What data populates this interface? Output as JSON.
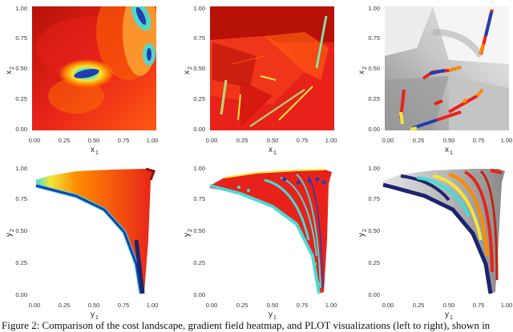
{
  "figure": {
    "caption": "Figure 2: Comparison of the cost landscape, gradient field heatmap, and PLOT visualizations (left to right), shown in",
    "top_row": {
      "xlabel": "x",
      "xlabel_sub": "1",
      "ylabel": "x",
      "ylabel_sub": "2",
      "xticks": [
        "0.00",
        "0.25",
        "0.50",
        "0.75",
        "1.00"
      ],
      "yticks": [
        "0.00",
        "0.25",
        "0.50",
        "0.75",
        "1.00"
      ],
      "panels": [
        "cost-landscape",
        "gradient-field-heatmap",
        "plot-visualization"
      ]
    },
    "bottom_row": {
      "xlabel": "y",
      "xlabel_sub": "1",
      "ylabel": "y",
      "ylabel_sub": "2",
      "xticks": [
        "0.00",
        "0.25",
        "0.50",
        "0.75",
        "1.00"
      ],
      "yticks": [
        "0.00",
        "0.25",
        "0.50",
        "0.75",
        "1.00"
      ],
      "panels": [
        "cost-landscape-objective",
        "gradient-field-objective",
        "plot-objective"
      ]
    },
    "colors": {
      "red": "#e8221a",
      "orange": "#ff8a00",
      "yellow": "#f4e53a",
      "cyan": "#46dcd6",
      "blue": "#1e3fb0",
      "navy": "#1b2470",
      "gray": "#9a9a9a"
    }
  }
}
